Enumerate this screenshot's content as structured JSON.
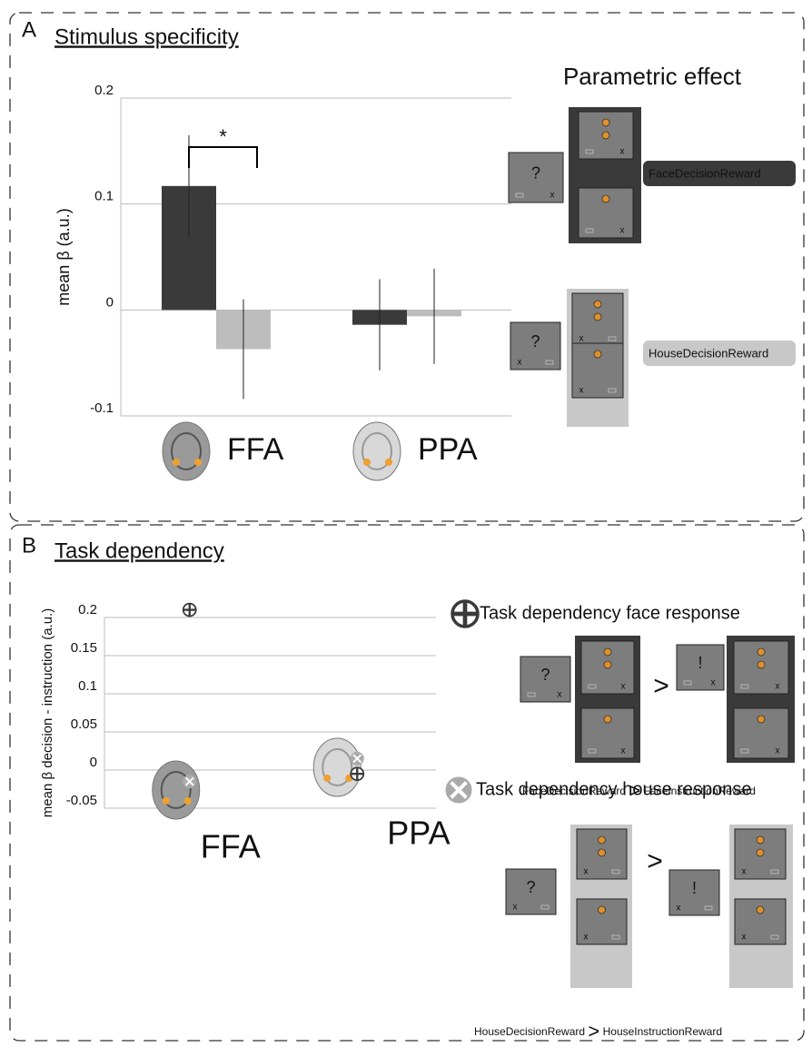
{
  "chart_data": [
    {
      "type": "bar",
      "panel": "A",
      "title": "Stimulus specificity",
      "subtitle": "Parametric effect",
      "ylabel": "mean β (a.u.)",
      "categories": [
        "FFA",
        "PPA"
      ],
      "series": [
        {
          "name": "FaceDecisionReward",
          "color": "#3a3a3a",
          "values": [
            0.117,
            -0.014
          ],
          "errors": [
            0.048,
            0.043
          ]
        },
        {
          "name": "HouseDecisionReward",
          "color": "#bdbdbd",
          "values": [
            -0.037,
            -0.006
          ],
          "errors": [
            0.047,
            0.045
          ]
        }
      ],
      "ylim": [
        -0.1,
        0.2
      ],
      "yticks": [
        0.2,
        0.1,
        0,
        -0.1
      ],
      "grid": true,
      "annotations": [
        "*"
      ]
    },
    {
      "type": "dot",
      "panel": "B",
      "title": "Task dependency",
      "ylabel": "mean β decision - instruction  (a.u.)",
      "categories": [
        "FFA",
        "PPA"
      ],
      "series": [
        {
          "name": "Task dependency face response",
          "color": "#3a3a3a",
          "values": [
            0.21,
            -0.005
          ]
        },
        {
          "name": "Task dependency house response",
          "color": "#aaaaaa",
          "values": [
            -0.015,
            0.015
          ]
        }
      ],
      "ylim": [
        -0.05,
        0.2
      ],
      "yticks": [
        0.2,
        0.15,
        0.1,
        0.05,
        0,
        -0.05
      ],
      "grid": true,
      "contrasts": [
        {
          "left": "FaceDecisionReward",
          "op": ">",
          "right": "FaceInstructionReward"
        },
        {
          "left": "HouseDecisionReward",
          "op": ">",
          "right": "HouseInstructionReward"
        }
      ]
    }
  ],
  "symbols": {
    "question": "?",
    "exclaim": "!",
    "cross": "x"
  }
}
